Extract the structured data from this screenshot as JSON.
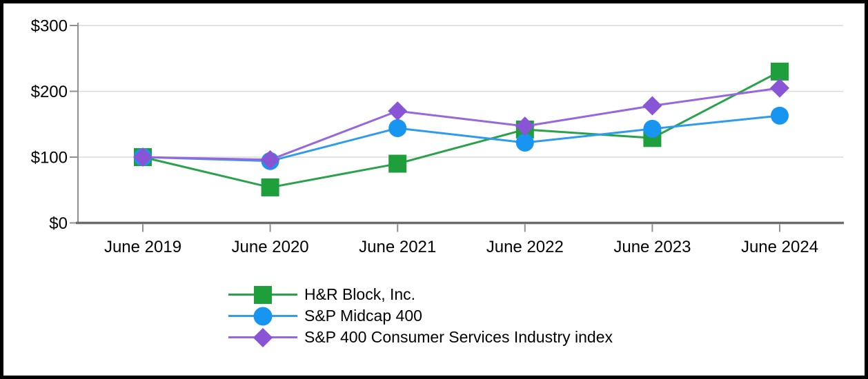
{
  "chart_data": {
    "type": "line",
    "title": "",
    "categories": [
      "June 2019",
      "June 2020",
      "June 2021",
      "June 2022",
      "June 2023",
      "June 2024"
    ],
    "series": [
      {
        "name": "H&R Block, Inc.",
        "marker": "square",
        "marker_color": "#1F9E3C",
        "line_color": "#2AA14B",
        "values": [
          100,
          54,
          90,
          142,
          129,
          230
        ]
      },
      {
        "name": "S&P Midcap 400",
        "marker": "circle",
        "marker_color": "#1795F1",
        "line_color": "#2E9BEF",
        "values": [
          100,
          94,
          144,
          122,
          143,
          163
        ]
      },
      {
        "name": "S&P 400 Consumer Services Industry index",
        "marker": "diamond",
        "marker_color": "#8856D5",
        "line_color": "#9668DB",
        "values": [
          100,
          96,
          170,
          147,
          178,
          205
        ]
      }
    ],
    "y_axis": {
      "tick_labels": [
        "$0",
        "$100",
        "$200",
        "$300"
      ],
      "tick_values": [
        0,
        100,
        200,
        300
      ],
      "range": [
        0,
        300
      ],
      "grid": true
    },
    "legend_position": "bottom-left",
    "colors": {
      "gridline": "#DADADA",
      "y_spine": "#8F8F8F",
      "x_spine": "#6B6B6B",
      "tick": "#8F8F8F",
      "text": "#000000",
      "frame_border": "#000000"
    }
  }
}
